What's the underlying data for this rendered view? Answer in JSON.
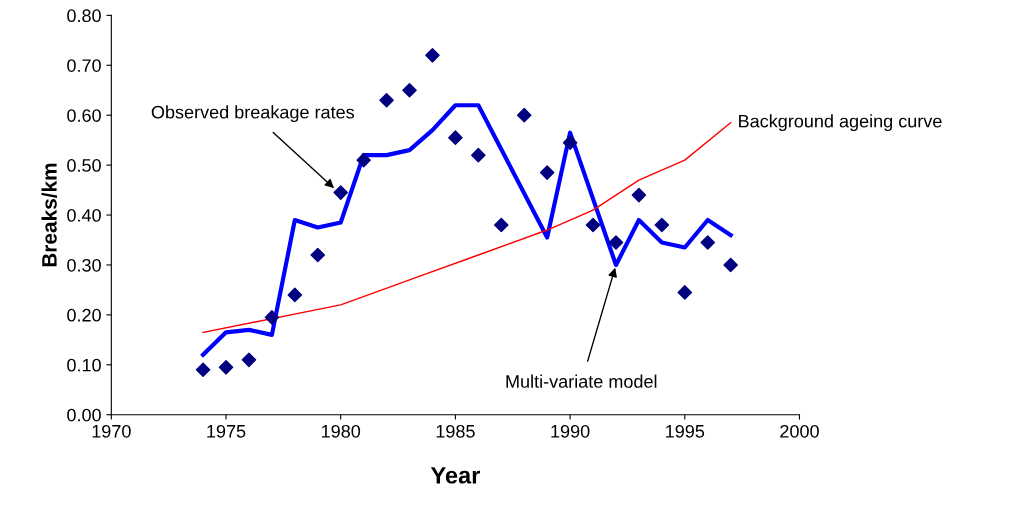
{
  "chart_data": {
    "type": "scatter",
    "xlabel": "Year",
    "ylabel": "Breaks/km",
    "xlim": [
      1970,
      2000
    ],
    "xticks": [
      1970,
      1975,
      1980,
      1985,
      1990,
      1995,
      2000
    ],
    "ylim": [
      0,
      0.8
    ],
    "yticks": [
      {
        "value": 0,
        "label": "0.00"
      },
      {
        "value": 0.1,
        "label": "0.10"
      },
      {
        "value": 0.2,
        "label": "0.20"
      },
      {
        "value": 0.3,
        "label": "0.30"
      },
      {
        "value": 0.4,
        "label": "0.40"
      },
      {
        "value": 0.5,
        "label": "0.50"
      },
      {
        "value": 0.6,
        "label": "0.60"
      },
      {
        "value": 0.7,
        "label": "0.70"
      },
      {
        "value": 0.8,
        "label": "0.80"
      }
    ],
    "grid": false,
    "legend": false,
    "series": [
      {
        "marker": "diamond",
        "color": "#000080",
        "x": [
          1974,
          1975,
          1976,
          1977,
          1978,
          1979,
          1980,
          1981,
          1982,
          1983,
          1984,
          1985,
          1986,
          1987,
          1988,
          1989,
          1990,
          1991,
          1992,
          1993,
          1994,
          1995,
          1996,
          1997
        ],
        "values": [
          0.09,
          0.095,
          0.11,
          0.195,
          0.24,
          0.32,
          0.445,
          0.51,
          0.63,
          0.65,
          0.72,
          0.555,
          0.52,
          0.38,
          0.6,
          0.485,
          0.545,
          0.38,
          0.345,
          0.44,
          0.38,
          0.245,
          0.345,
          0.3
        ]
      },
      {
        "type": "line",
        "marker": "none",
        "color": "#0000ff",
        "x": [
          1974,
          1975,
          1976,
          1977,
          1978,
          1979,
          1980,
          1981,
          1982,
          1983,
          1984,
          1985,
          1986,
          1989,
          1990,
          1992,
          1993,
          1994,
          1995,
          1996,
          1997
        ],
        "values": [
          0.12,
          0.165,
          0.17,
          0.16,
          0.39,
          0.375,
          0.385,
          0.52,
          0.52,
          0.53,
          0.57,
          0.62,
          0.62,
          0.355,
          0.565,
          0.3,
          0.39,
          0.345,
          0.335,
          0.39,
          0.36
        ]
      },
      {
        "type": "line",
        "marker": "none",
        "color": "#ff0000",
        "x": [
          1974,
          1980,
          1983,
          1986,
          1989,
          1991,
          1993,
          1995,
          1997
        ],
        "values": [
          0.165,
          0.22,
          0.27,
          0.32,
          0.37,
          0.41,
          0.47,
          0.51,
          0.585
        ]
      }
    ],
    "annotations": [
      {
        "text": "Observed breakage rates",
        "x": 1979.8,
        "y": 0.45
      },
      {
        "text": "Multi-variate model",
        "x": 1992,
        "y": 0.3
      },
      {
        "text": "Background ageing curve",
        "x": 1997,
        "y": 0.585
      }
    ]
  }
}
